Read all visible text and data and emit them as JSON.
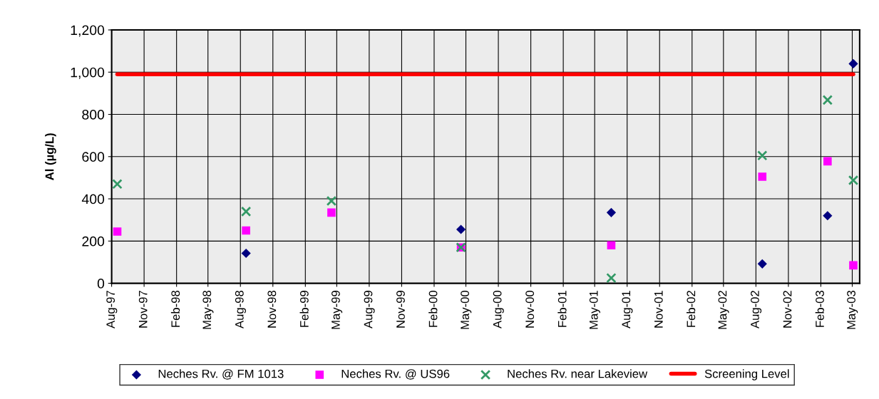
{
  "chart_data": {
    "type": "scatter",
    "ylabel": "Al (µg/L)",
    "x": [
      "1997-08-17",
      "1998-08-17",
      "1999-04-16",
      "2000-04-17",
      "2001-06-17",
      "2002-08-19",
      "2003-02-20",
      "2003-05-04"
    ],
    "series": [
      {
        "name": "Neches Rv. @ FM 1013",
        "color": "#000080",
        "marker": "diamond",
        "values": [
          null,
          142,
          null,
          255,
          335,
          92,
          320,
          1040
        ]
      },
      {
        "name": "Neches Rv. @ US96",
        "color": "#ff00ff",
        "marker": "square",
        "values": [
          245,
          250,
          335,
          170,
          180,
          505,
          578,
          85
        ]
      },
      {
        "name": "Neches Rv. near Lakeview",
        "color": "#339966",
        "marker": "cross",
        "values": [
          470,
          340,
          390,
          170,
          25,
          605,
          868,
          488
        ]
      },
      {
        "name": "Screening Level",
        "type": "line",
        "color": "#ff0000",
        "marker": "none",
        "line_style": "solid",
        "x": [
          "1997-08-17",
          "2003-05-04"
        ],
        "values": [
          990,
          990
        ]
      }
    ],
    "ylim": [
      0,
      1200
    ],
    "yticks": [
      {
        "value": 0,
        "label": "0"
      },
      {
        "value": 200,
        "label": "200"
      },
      {
        "value": 400,
        "label": "400"
      },
      {
        "value": 600,
        "label": "600"
      },
      {
        "value": 800,
        "label": "800"
      },
      {
        "value": 1000,
        "label": "1,000"
      },
      {
        "value": 1200,
        "label": "1,200"
      }
    ],
    "xlim": [
      "1997-08-01",
      "2003-05-22"
    ],
    "xticks": [
      {
        "value": "1997-08-01",
        "label": "Aug-97"
      },
      {
        "value": "1997-11-01",
        "label": "Nov-97"
      },
      {
        "value": "1998-02-01",
        "label": "Feb-98"
      },
      {
        "value": "1998-05-01",
        "label": "May-98"
      },
      {
        "value": "1998-08-01",
        "label": "Aug-98"
      },
      {
        "value": "1998-11-01",
        "label": "Nov-98"
      },
      {
        "value": "1999-02-01",
        "label": "Feb-99"
      },
      {
        "value": "1999-05-01",
        "label": "May-99"
      },
      {
        "value": "1999-08-01",
        "label": "Aug-99"
      },
      {
        "value": "1999-11-01",
        "label": "Nov-99"
      },
      {
        "value": "2000-02-01",
        "label": "Feb-00"
      },
      {
        "value": "2000-05-01",
        "label": "May-00"
      },
      {
        "value": "2000-08-01",
        "label": "Aug-00"
      },
      {
        "value": "2000-11-01",
        "label": "Nov-00"
      },
      {
        "value": "2001-02-01",
        "label": "Feb-01"
      },
      {
        "value": "2001-05-01",
        "label": "May-01"
      },
      {
        "value": "2001-08-01",
        "label": "Aug-01"
      },
      {
        "value": "2001-11-01",
        "label": "Nov-01"
      },
      {
        "value": "2002-02-01",
        "label": "Feb-02"
      },
      {
        "value": "2002-05-01",
        "label": "May-02"
      },
      {
        "value": "2002-08-01",
        "label": "Aug-02"
      },
      {
        "value": "2002-11-01",
        "label": "Nov-02"
      },
      {
        "value": "2003-02-01",
        "label": "Feb-03"
      },
      {
        "value": "2003-05-01",
        "label": "May-03"
      }
    ],
    "grid": true,
    "legend": "bottom"
  }
}
